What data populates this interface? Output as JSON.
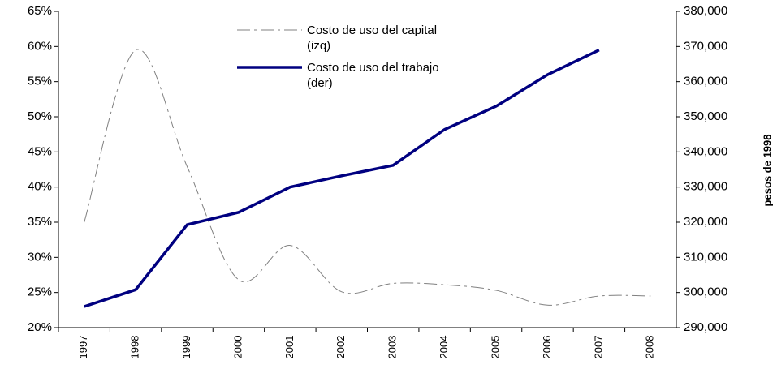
{
  "chart_data": {
    "type": "line",
    "categories": [
      "1997",
      "1998",
      "1999",
      "2000",
      "2001",
      "2002",
      "2003",
      "2004",
      "2005",
      "2006",
      "2007",
      "2008"
    ],
    "series": [
      {
        "name": "Costo de uso del capital (izq)",
        "color": "#808080",
        "dashed": true,
        "smooth": true,
        "axis": "y",
        "values": [
          35,
          59.5,
          42.9,
          26.8,
          31.7,
          25.1,
          26.3,
          26.1,
          25.3,
          23.2,
          24.5,
          24.5
        ]
      },
      {
        "name": "Costo de uso del trabajo (der)",
        "color": "#000080",
        "dashed": false,
        "smooth": false,
        "axis": "y2",
        "values": [
          296000,
          300800,
          319300,
          322800,
          330000,
          333200,
          336200,
          346400,
          353000,
          362000,
          369000,
          null
        ]
      }
    ],
    "ylim": [
      20,
      65
    ],
    "yticks": [
      {
        "value": 20,
        "label": "20%"
      },
      {
        "value": 25,
        "label": "25%"
      },
      {
        "value": 30,
        "label": "30%"
      },
      {
        "value": 35,
        "label": "35%"
      },
      {
        "value": 40,
        "label": "40%"
      },
      {
        "value": 45,
        "label": "45%"
      },
      {
        "value": 50,
        "label": "50%"
      },
      {
        "value": 55,
        "label": "55%"
      },
      {
        "value": 60,
        "label": "60%"
      },
      {
        "value": 65,
        "label": "65%"
      }
    ],
    "y2lim": [
      290000,
      380000
    ],
    "y2ticks": [
      {
        "value": 290000,
        "label": "290,000"
      },
      {
        "value": 300000,
        "label": "300,000"
      },
      {
        "value": 310000,
        "label": "310,000"
      },
      {
        "value": 320000,
        "label": "320,000"
      },
      {
        "value": 330000,
        "label": "330,000"
      },
      {
        "value": 340000,
        "label": "340,000"
      },
      {
        "value": 350000,
        "label": "350,000"
      },
      {
        "value": 360000,
        "label": "360,000"
      },
      {
        "value": 370000,
        "label": "370,000"
      },
      {
        "value": 380000,
        "label": "380,000"
      }
    ],
    "y2label": "pesos de 1998",
    "grid": false
  }
}
